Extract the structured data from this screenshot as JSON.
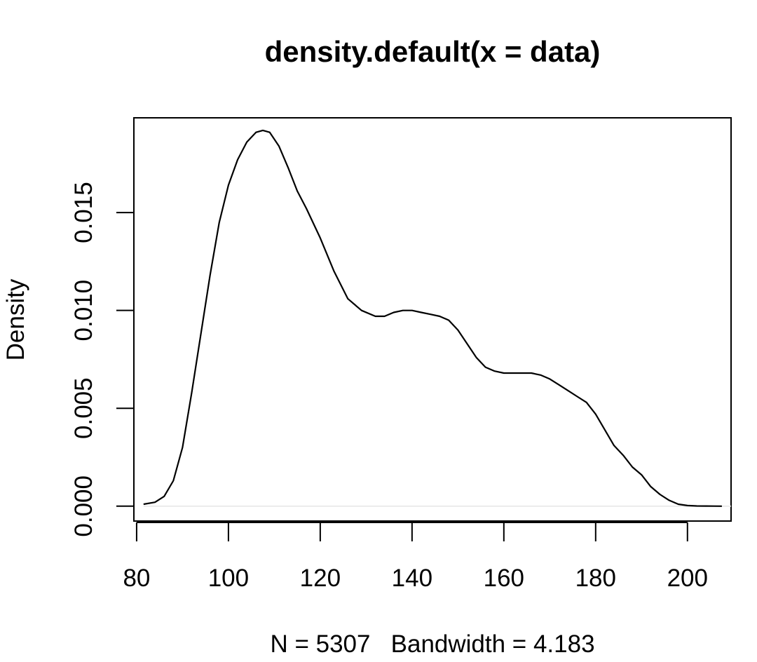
{
  "chart_data": {
    "type": "line",
    "title": "density.default(x = data)",
    "xlabel": "N = 5307   Bandwidth = 4.183",
    "ylabel": "Density",
    "xlim": [
      79.4,
      209.5
    ],
    "ylim": [
      -0.00076,
      0.01984
    ],
    "x_ticks": [
      80,
      100,
      120,
      140,
      160,
      180,
      200
    ],
    "x_tick_labels": [
      "80",
      "100",
      "120",
      "140",
      "160",
      "180",
      "200"
    ],
    "y_ticks": [
      0,
      0.005,
      0.01,
      0.015
    ],
    "y_tick_labels": [
      "0.000",
      "0.005",
      "0.010",
      "0.015"
    ],
    "grid": false,
    "legend": "none",
    "zero_line": true,
    "line_color": "#000000",
    "zero_line_color": "#e6e6e6",
    "series": [
      {
        "x": [
          81.5,
          84,
          86,
          88,
          90,
          92,
          94,
          96,
          98,
          100,
          102,
          104,
          106,
          107.5,
          109,
          111,
          113,
          115,
          117,
          120,
          123,
          126,
          129,
          132,
          134,
          136,
          138,
          140,
          142,
          144,
          146,
          148,
          150,
          152,
          154,
          156,
          158,
          160,
          162,
          164,
          166,
          168,
          170,
          172,
          174,
          176,
          178,
          180,
          182,
          184,
          186,
          188,
          190,
          192,
          194,
          196,
          198,
          200,
          202,
          204,
          207.5
        ],
        "y": [
          0.0001,
          0.0002,
          0.0005,
          0.0013,
          0.003,
          0.0058,
          0.0088,
          0.0118,
          0.0145,
          0.0164,
          0.0177,
          0.0186,
          0.0191,
          0.0192,
          0.0191,
          0.0184,
          0.0173,
          0.0161,
          0.0152,
          0.0137,
          0.012,
          0.0106,
          0.01,
          0.0097,
          0.0097,
          0.0099,
          0.01,
          0.01,
          0.0099,
          0.0098,
          0.0097,
          0.0095,
          0.009,
          0.0083,
          0.0076,
          0.0071,
          0.0069,
          0.0068,
          0.0068,
          0.0068,
          0.0068,
          0.0067,
          0.0065,
          0.0062,
          0.0059,
          0.0056,
          0.0053,
          0.0047,
          0.0039,
          0.0031,
          0.0026,
          0.002,
          0.0016,
          0.001,
          0.0006,
          0.0003,
          0.0001,
          3e-05,
          1e-05,
          5e-06,
          0.0
        ]
      }
    ]
  }
}
